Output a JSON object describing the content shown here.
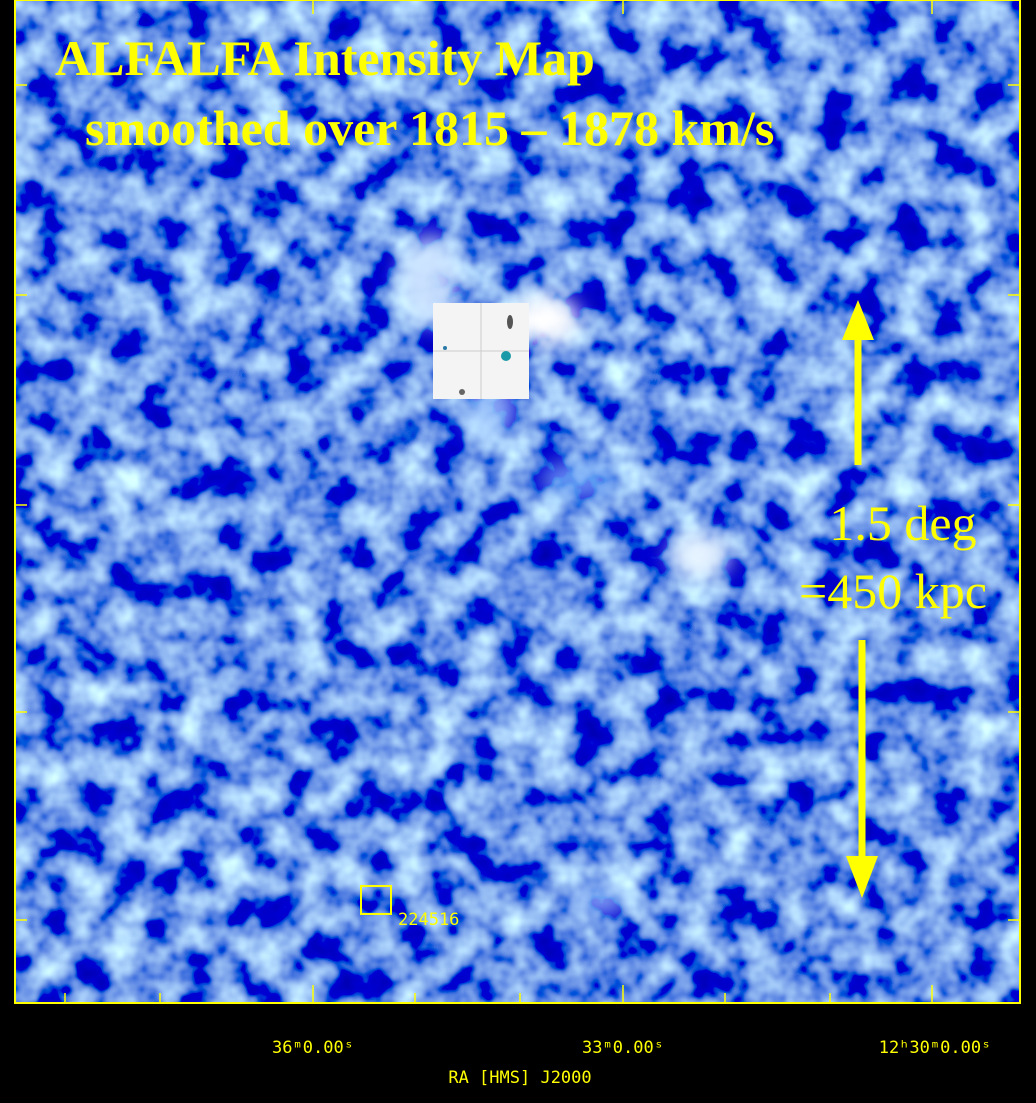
{
  "title": {
    "line1": "ALFALFA Intensity Map",
    "line2": "smoothed over 1815 – 1878 km/s"
  },
  "scale": {
    "line1": "1.5 deg",
    "line2": "=450 kpc"
  },
  "source": {
    "label": "224516"
  },
  "x_axis": {
    "ticks": [
      "36ᵐ0.00ˢ",
      "33ᵐ0.00ˢ",
      "12ʰ30ᵐ0.00ˢ"
    ],
    "label": "RA [HMS] J2000"
  }
}
